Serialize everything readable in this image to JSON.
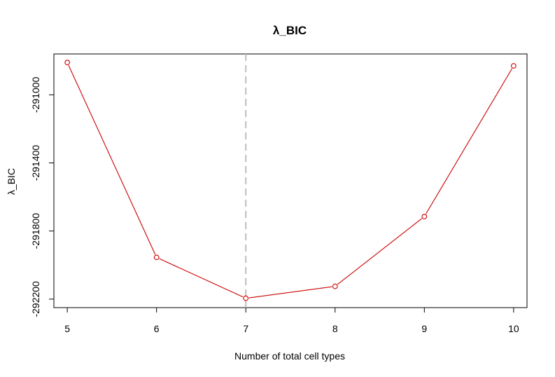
{
  "chart_data": {
    "type": "line",
    "title": "λ_BIC",
    "xlabel": "Number of total cell types",
    "ylabel": "λ_BIC",
    "x": [
      5,
      6,
      7,
      8,
      9,
      10
    ],
    "series": [
      {
        "values": [
          -290810,
          -291955,
          -292195,
          -292125,
          -291715,
          -290830
        ]
      }
    ],
    "xticks": [
      "5",
      "6",
      "7",
      "8",
      "9",
      "10"
    ],
    "yticks": [
      "-291000",
      "-291400",
      "-291800",
      "-292200"
    ],
    "xlim": [
      4.85,
      10.15
    ],
    "ylim": [
      -292250,
      -290760
    ],
    "vline": 7,
    "grid": false,
    "colors": {
      "series": "#cc0000",
      "vline": "#bebebe",
      "axis": "#000000"
    }
  }
}
